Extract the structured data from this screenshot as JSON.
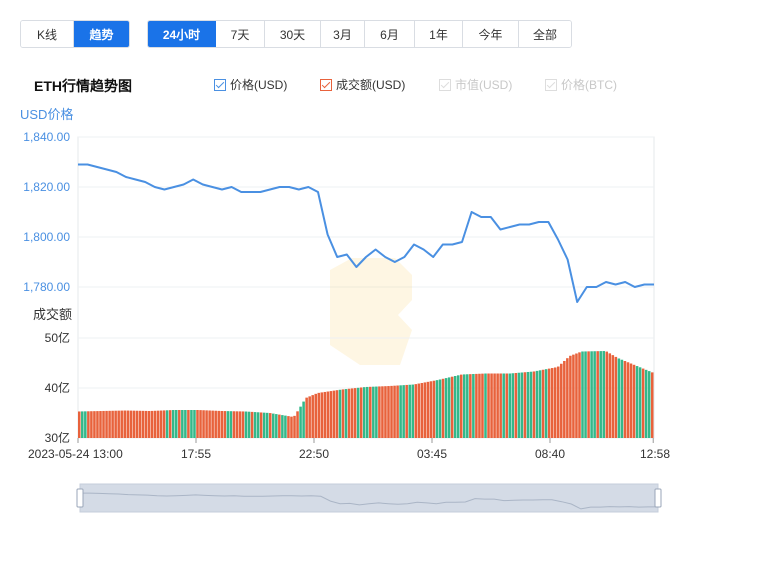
{
  "view_tabs": [
    {
      "label": "K线",
      "active": false
    },
    {
      "label": "趋势",
      "active": true
    }
  ],
  "range_tabs": [
    {
      "label": "24小时",
      "active": true
    },
    {
      "label": "7天",
      "active": false
    },
    {
      "label": "30天",
      "active": false
    },
    {
      "label": "3月",
      "active": false
    },
    {
      "label": "6月",
      "active": false
    },
    {
      "label": "1年",
      "active": false
    },
    {
      "label": "今年",
      "active": false
    },
    {
      "label": "全部",
      "active": false
    }
  ],
  "legend": [
    {
      "label": "价格(USD)",
      "color": "#4a90e2",
      "checked": true,
      "enabled": true
    },
    {
      "label": "成交额(USD)",
      "color": "#e8623c",
      "checked": true,
      "enabled": true
    },
    {
      "label": "市值(USD)",
      "color": "#cccccc",
      "checked": true,
      "enabled": false
    },
    {
      "label": "价格(BTC)",
      "color": "#cccccc",
      "checked": true,
      "enabled": false
    }
  ],
  "colors": {
    "accent": "#1a73e8",
    "price_line": "#4a90e2",
    "vol_up": "#e8623c",
    "vol_down": "#34b88a",
    "navigator": "#d4dbe6"
  },
  "chart_data": [
    {
      "type": "line",
      "title": "ETH行情趋势图",
      "ylabel": "USD价格",
      "ylim": [
        1780,
        1840
      ],
      "yticks": [
        "1,840.00",
        "1,820.00",
        "1,800.00",
        "1,780.00"
      ],
      "ytick_values": [
        1840,
        1820,
        1800,
        1780
      ],
      "x_hours": [
        0,
        0.4,
        0.8,
        1.2,
        1.6,
        2.0,
        2.4,
        2.8,
        3.2,
        3.6,
        4.0,
        4.4,
        4.8,
        5.2,
        5.6,
        6.0,
        6.4,
        6.8,
        7.2,
        7.6,
        8.0,
        8.4,
        8.8,
        9.2,
        9.6,
        10.0,
        10.4,
        10.8,
        11.2,
        11.6,
        12.0,
        12.4,
        12.8,
        13.2,
        13.6,
        14.0,
        14.4,
        14.8,
        15.2,
        15.6,
        16.0,
        16.4,
        16.8,
        17.2,
        17.6,
        18.0,
        18.4,
        18.8,
        19.2,
        19.6,
        20.0,
        20.4,
        20.8,
        21.2,
        21.6,
        22.0,
        22.4,
        22.8,
        23.2,
        23.6,
        24.0
      ],
      "series": [
        {
          "values": [
            1829,
            1829,
            1828,
            1827,
            1826,
            1824,
            1823,
            1822,
            1820,
            1819,
            1820,
            1821,
            1823,
            1821,
            1820,
            1819,
            1820,
            1818,
            1818,
            1818,
            1819,
            1820,
            1820,
            1819,
            1820,
            1818,
            1801,
            1792,
            1793,
            1788,
            1792,
            1795,
            1792,
            1790,
            1792,
            1797,
            1795,
            1792,
            1797,
            1797,
            1798,
            1810,
            1808,
            1808,
            1803,
            1804,
            1805,
            1805,
            1806,
            1806,
            1799,
            1791,
            1774,
            1780,
            1780,
            1782,
            1781,
            1782,
            1780,
            1781,
            1781
          ]
        }
      ]
    },
    {
      "type": "bar",
      "ylabel": "成交额",
      "ylim": [
        30,
        50
      ],
      "yticks": [
        "50亿",
        "40亿",
        "30亿"
      ],
      "ytick_values": [
        50,
        40,
        30
      ],
      "xticks": [
        "2023-05-24 13:00",
        "17:55",
        "22:50",
        "03:45",
        "08:40",
        "12:58"
      ],
      "xtick_hours": [
        0,
        4.917,
        9.833,
        14.75,
        19.667,
        23.967
      ],
      "x_hours": [
        0,
        1,
        2,
        3,
        4,
        5,
        6,
        7,
        8,
        9,
        9.25,
        9.5,
        10,
        11,
        12,
        13,
        14,
        15,
        16,
        17,
        18,
        19,
        20,
        20.5,
        21,
        22,
        22.5,
        23,
        24
      ],
      "series": [
        {
          "values": [
            35.3,
            35.4,
            35.5,
            35.4,
            35.6,
            35.6,
            35.4,
            35.3,
            35.0,
            34.2,
            36.0,
            38.0,
            39.0,
            39.7,
            40.2,
            40.4,
            40.7,
            41.6,
            42.7,
            42.9,
            42.9,
            43.3,
            44.2,
            46.4,
            47.3,
            47.4,
            46.0,
            45.0,
            43.0
          ]
        }
      ]
    }
  ]
}
